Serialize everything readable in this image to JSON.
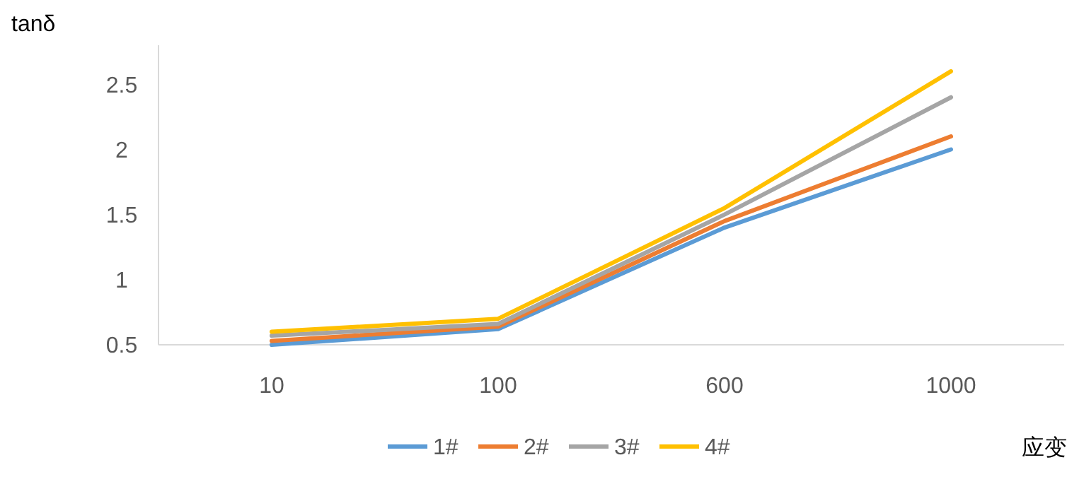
{
  "chart_data": {
    "type": "line",
    "xlabel": "应变",
    "ylabel": "tanδ",
    "categories": [
      "10",
      "100",
      "600",
      "1000"
    ],
    "series": [
      {
        "name": "1#",
        "color": "#5b9bd5",
        "values": [
          0.5,
          0.62,
          1.4,
          2.0
        ]
      },
      {
        "name": "2#",
        "color": "#ed7d31",
        "values": [
          0.53,
          0.64,
          1.45,
          2.1
        ]
      },
      {
        "name": "3#",
        "color": "#a5a5a5",
        "values": [
          0.57,
          0.66,
          1.5,
          2.4
        ]
      },
      {
        "name": "4#",
        "color": "#ffc000",
        "values": [
          0.6,
          0.7,
          1.55,
          2.6
        ]
      }
    ],
    "ylim": [
      0.5,
      2.8
    ],
    "yticks": [
      0.5,
      1,
      1.5,
      2,
      2.5
    ],
    "grid": false,
    "legend": "bottom",
    "marker": "none",
    "line_style": "solid"
  }
}
